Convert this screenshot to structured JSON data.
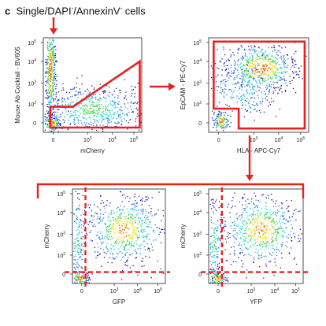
{
  "figure": {
    "panel_letter": "c",
    "header_parts": [
      "Single/DAPI",
      "-",
      "/AnnexinV",
      "-",
      " cells"
    ]
  },
  "colors": {
    "gate": "#e8211f",
    "density_scale": [
      "#1a1aa6",
      "#2f7fe0",
      "#33d0d8",
      "#44d04a",
      "#f2e62a",
      "#f07a1c"
    ]
  },
  "plots": [
    {
      "id": "plot-mouse-ab-vs-mcherry",
      "xlabel": "mCherry",
      "ylabel": "Mouse Ab Cocktail - BV605",
      "x_ticks": [
        "0",
        "10",
        "10",
        "10"
      ],
      "x_tick_exps": [
        "",
        "3",
        "4",
        "5"
      ],
      "y_ticks": [
        "0",
        "10",
        "10",
        "10",
        "10"
      ],
      "y_tick_exps": [
        "",
        "2",
        "3",
        "4",
        "5"
      ],
      "gate": "polygon"
    },
    {
      "id": "plot-epcam-vs-hla",
      "xlabel": "HLA - APC-Cy7",
      "ylabel": "EpCAM - PE-Cy7",
      "x_ticks": [
        "0",
        "10",
        "10",
        "10"
      ],
      "x_tick_exps": [
        "",
        "3",
        "4",
        "5"
      ],
      "y_ticks": [
        "0",
        "10",
        "10",
        "10",
        "10"
      ],
      "y_tick_exps": [
        "",
        "2",
        "3",
        "4",
        "5"
      ],
      "gate": "polygon"
    },
    {
      "id": "plot-mcherry-vs-gfp",
      "xlabel": "GFP",
      "ylabel": "mCherry",
      "x_ticks": [
        "0",
        "10",
        "10",
        "10"
      ],
      "x_tick_exps": [
        "",
        "3",
        "4",
        "5"
      ],
      "y_ticks": [
        "0",
        "10",
        "10",
        "10",
        "10"
      ],
      "y_tick_exps": [
        "",
        "2",
        "3",
        "4",
        "5"
      ],
      "gate": "quadrant"
    },
    {
      "id": "plot-mcherry-vs-yfp",
      "xlabel": "YFP",
      "ylabel": "mCherry",
      "x_ticks": [
        "0",
        "10",
        "10",
        "10"
      ],
      "x_tick_exps": [
        "",
        "3",
        "4",
        "5"
      ],
      "y_ticks": [
        "0",
        "10",
        "10",
        "10",
        "10"
      ],
      "y_tick_exps": [
        "",
        "2",
        "3",
        "4",
        "5"
      ],
      "gate": "quadrant"
    }
  ]
}
